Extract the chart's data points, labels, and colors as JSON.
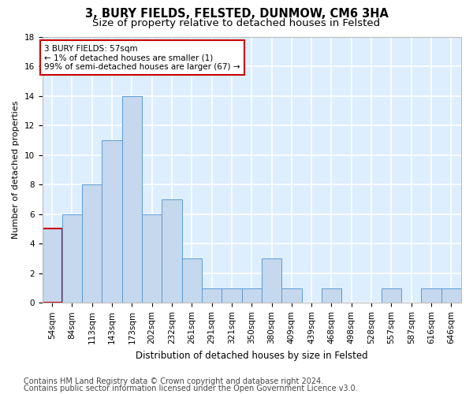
{
  "title1": "3, BURY FIELDS, FELSTED, DUNMOW, CM6 3HA",
  "title2": "Size of property relative to detached houses in Felsted",
  "xlabel": "Distribution of detached houses by size in Felsted",
  "ylabel": "Number of detached properties",
  "categories": [
    "54sqm",
    "84sqm",
    "113sqm",
    "143sqm",
    "173sqm",
    "202sqm",
    "232sqm",
    "261sqm",
    "291sqm",
    "321sqm",
    "350sqm",
    "380sqm",
    "409sqm",
    "439sqm",
    "468sqm",
    "498sqm",
    "528sqm",
    "557sqm",
    "587sqm",
    "616sqm",
    "646sqm"
  ],
  "values": [
    5,
    6,
    8,
    11,
    14,
    6,
    7,
    3,
    1,
    1,
    1,
    3,
    1,
    0,
    1,
    0,
    0,
    1,
    0,
    1,
    1
  ],
  "bar_color": "#c5d8ed",
  "bar_edge_color": "#5b9bd5",
  "highlight_edge_color": "#cc0000",
  "annotation_text": "3 BURY FIELDS: 57sqm\n← 1% of detached houses are smaller (1)\n99% of semi-detached houses are larger (67) →",
  "annotation_box_color": "#ffffff",
  "annotation_box_edge_color": "#cc0000",
  "ylim": [
    0,
    18
  ],
  "yticks": [
    0,
    2,
    4,
    6,
    8,
    10,
    12,
    14,
    16,
    18
  ],
  "footer_line1": "Contains HM Land Registry data © Crown copyright and database right 2024.",
  "footer_line2": "Contains public sector information licensed under the Open Government Licence v3.0.",
  "fig_bg_color": "#ffffff",
  "plot_bg_color": "#ddeeff",
  "grid_color": "#ffffff",
  "title1_fontsize": 10.5,
  "title2_fontsize": 9.5,
  "xlabel_fontsize": 8.5,
  "ylabel_fontsize": 8,
  "tick_fontsize": 7.5,
  "footer_fontsize": 7,
  "annot_fontsize": 7.5
}
